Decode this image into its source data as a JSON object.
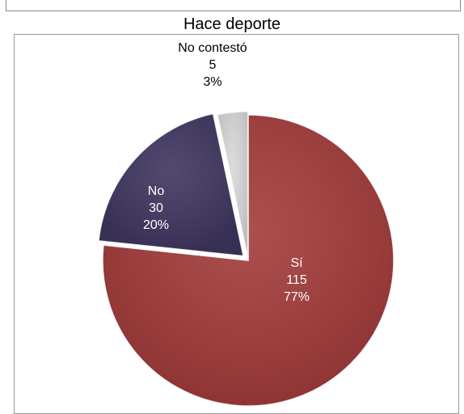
{
  "chart_data": {
    "type": "pie",
    "title": "Hace deporte",
    "slices": [
      {
        "label": "Sí",
        "value": 115,
        "percent": "77%",
        "color": "#a33b3b",
        "label_color": "#ffffff"
      },
      {
        "label": "No",
        "value": 30,
        "percent": "20%",
        "color": "#3f3560",
        "label_color": "#ffffff"
      },
      {
        "label": "No contestó",
        "value": 5,
        "percent": "3%",
        "color": "#d9d9d9",
        "label_color": "#000000"
      }
    ]
  }
}
